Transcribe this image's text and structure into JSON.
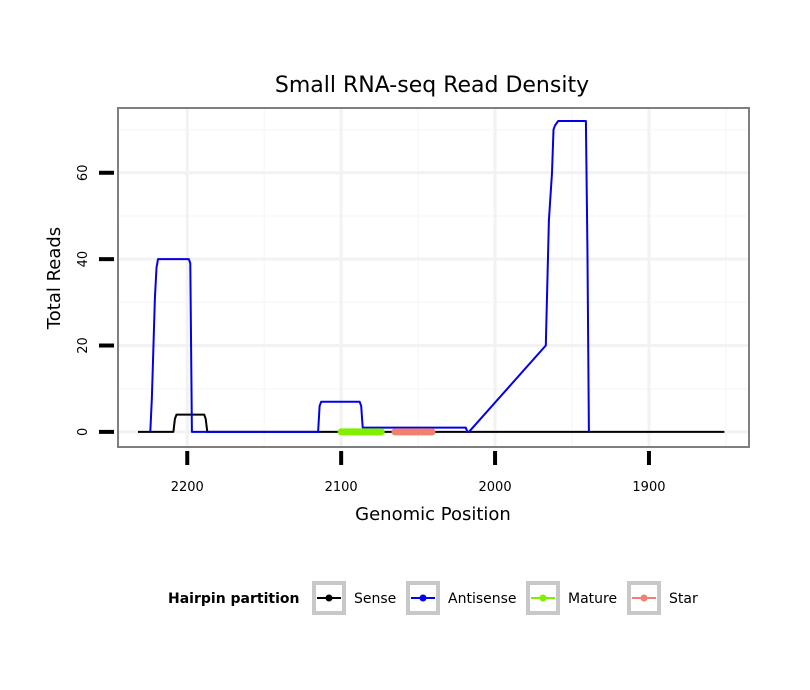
{
  "chart_data": {
    "type": "line",
    "title": "Small RNA-seq Read Density",
    "xlabel": "Genomic Position",
    "ylabel": "Total Reads",
    "xlim": [
      2245,
      1835
    ],
    "ylim": [
      -3.5,
      75
    ],
    "x_reversed": true,
    "x_ticks": [
      2200,
      2100,
      2000,
      1900
    ],
    "x_tick_labels": [
      "2200",
      "2100",
      "2000",
      "1900"
    ],
    "y_ticks": [
      0,
      20,
      40,
      60
    ],
    "y_tick_labels": [
      "0",
      "20",
      "40",
      "60"
    ],
    "grid": true,
    "legend": {
      "title": "Hairpin partition",
      "position": "bottom",
      "entries": [
        "Sense",
        "Antisense",
        "Mature",
        "Star"
      ]
    },
    "series": [
      {
        "name": "Sense",
        "color": "#000000",
        "x": [
          2232,
          2209,
          2208,
          2207,
          2189,
          2188,
          2187,
          1851
        ],
        "y": [
          0,
          0,
          3,
          4,
          4,
          3,
          0,
          0
        ]
      },
      {
        "name": "Antisense",
        "color": "#0000ee",
        "x": [
          2224,
          2223,
          2221,
          2220,
          2219,
          2199,
          2198,
          2197,
          2115,
          2114,
          2113,
          2088,
          2087,
          2086,
          2019,
          2018,
          2017,
          1967,
          1965,
          1963,
          1962,
          1961,
          1959,
          1958,
          1941,
          1940,
          1939
        ],
        "y": [
          0,
          8,
          31,
          38,
          40,
          40,
          39,
          0,
          0,
          6,
          7,
          7,
          6,
          1,
          1,
          0,
          0,
          20,
          49,
          60,
          70,
          71,
          72,
          72,
          72,
          43,
          0
        ]
      },
      {
        "name": "Mature",
        "color": "#80f000",
        "x": [
          2100,
          2074
        ],
        "y": [
          0,
          0
        ]
      },
      {
        "name": "Star",
        "color": "#f08070",
        "x": [
          2065,
          2041
        ],
        "y": [
          0,
          0
        ]
      }
    ]
  }
}
